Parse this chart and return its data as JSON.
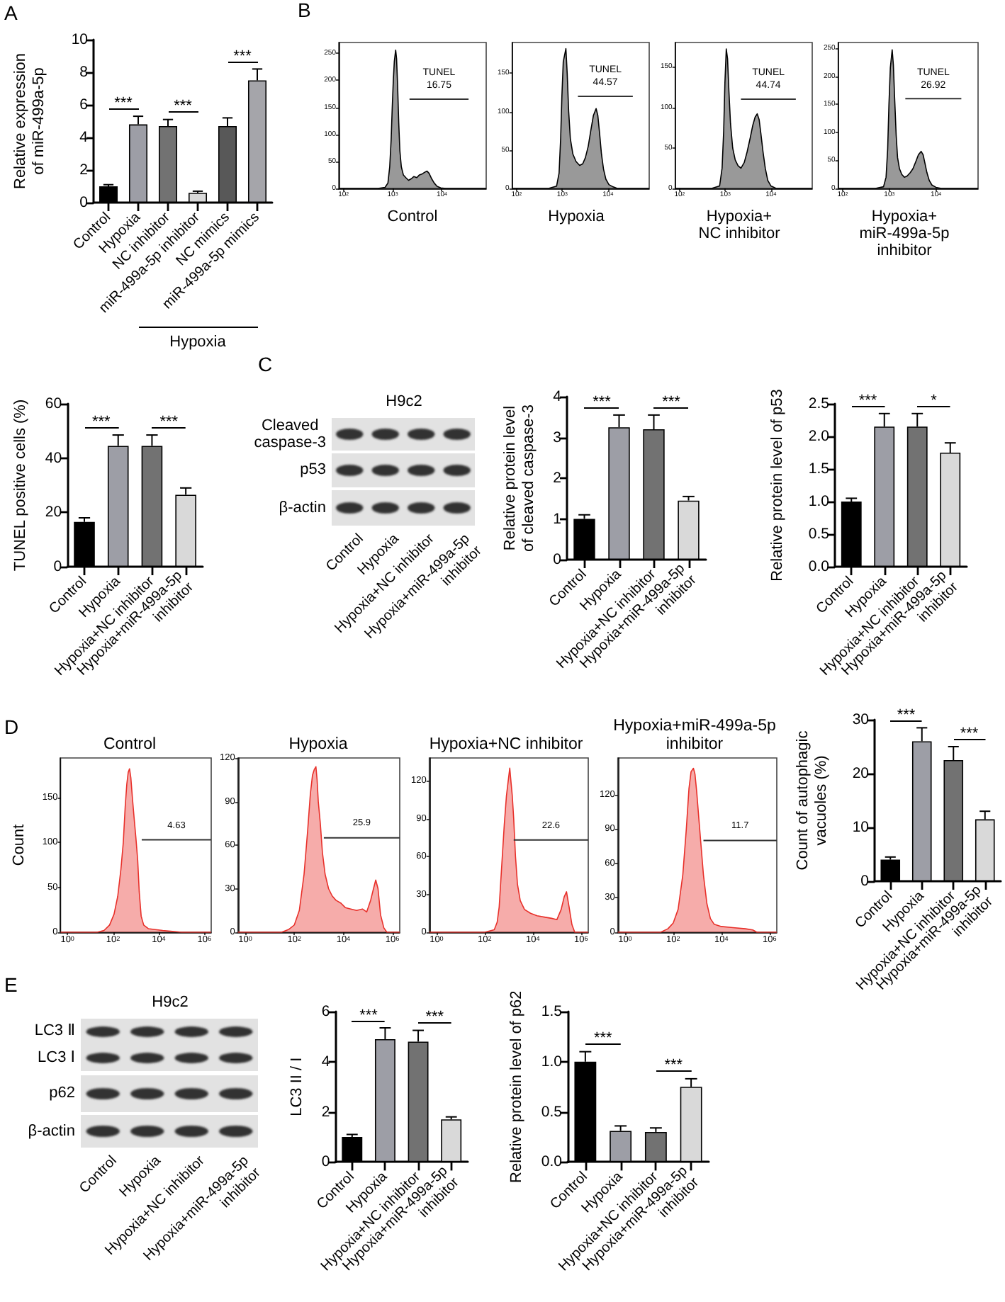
{
  "chart_data": [
    {
      "type": "bar",
      "ylabel": "Relative expression\nof miR-499a-5p",
      "categories": [
        "Control",
        "Hypoxia",
        "NC inhibitor",
        "miR-499a-5p inhibitor",
        "NC mimics",
        "miR-499a-5p mimics"
      ],
      "values": [
        1.0,
        4.8,
        4.7,
        0.6,
        4.7,
        7.5
      ],
      "colors": [
        "#000000",
        "#9d9ea6",
        "#727272",
        "#d9d9d9",
        "#585858",
        "#a5a5aa"
      ],
      "errors": [
        [
          1.0,
          1.1
        ],
        [
          4.8,
          5.3
        ],
        [
          4.7,
          5.1
        ],
        [
          0.6,
          0.7
        ],
        [
          4.7,
          5.2
        ],
        [
          7.5,
          8.2
        ]
      ],
      "ylim": [
        0,
        10
      ],
      "yticks": [
        0,
        2,
        4,
        6,
        8,
        10
      ],
      "annotations": [
        "A",
        "***",
        "***",
        "***",
        "Hypoxia"
      ]
    },
    {
      "type": "area",
      "title": "Control",
      "series": [
        {
          "color": "#000000",
          "x": [
            80,
            500,
            700,
            800,
            870,
            930,
            980,
            1030,
            1080,
            1150,
            1200,
            1260,
            1330,
            1400,
            1500,
            1650,
            1850,
            2100,
            2400,
            2700,
            3100,
            3500,
            4000,
            4500,
            5000,
            5500,
            6200,
            7000,
            8000,
            9500,
            12000,
            80000
          ],
          "values": [
            0,
            0,
            2,
            10,
            40,
            90,
            150,
            200,
            235,
            256,
            240,
            190,
            120,
            70,
            40,
            25,
            20,
            15,
            18,
            22,
            20,
            25,
            27,
            30,
            32,
            28,
            18,
            10,
            4,
            1,
            0,
            0
          ]
        },
        {
          "type": "line",
          "color": "#333333",
          "x": [
            2200,
            35000
          ],
          "values": [
            165,
            165
          ]
        }
      ],
      "log": "x",
      "xlim": [
        80,
        80000
      ],
      "xticks": [
        {
          "value": 100,
          "label": "10$^{2}$"
        },
        {
          "value": 1000,
          "label": "10$^{3}$"
        },
        {
          "value": 10000,
          "label": "10$^{4}$"
        }
      ],
      "ylim": [
        0,
        270
      ],
      "yticks": [
        0,
        50,
        100,
        150,
        200,
        250
      ],
      "annotations": [
        "B",
        "TUNEL",
        "16.75"
      ]
    },
    {
      "type": "area",
      "title": "Hypoxia",
      "series": [
        {
          "color": "#000000",
          "x": [
            80,
            500,
            750,
            850,
            920,
            980,
            1050,
            1200,
            1280,
            1380,
            1500,
            1700,
            2000,
            2400,
            2800,
            3200,
            3700,
            4200,
            4800,
            5500,
            6000,
            6600,
            7200,
            8000,
            9000,
            10500,
            13000,
            16000,
            80000
          ],
          "values": [
            0,
            0,
            3,
            20,
            65,
            120,
            165,
            182,
            150,
            100,
            65,
            45,
            35,
            30,
            32,
            40,
            55,
            75,
            95,
            104,
            95,
            70,
            45,
            25,
            12,
            5,
            2,
            0,
            0
          ]
        },
        {
          "type": "line",
          "color": "#333333",
          "x": [
            2200,
            35000
          ],
          "values": [
            120,
            120
          ]
        }
      ],
      "log": "x",
      "xlim": [
        80,
        80000
      ],
      "xticks": [
        {
          "value": 100,
          "label": "10$^{2}$"
        },
        {
          "value": 1000,
          "label": "10$^{3}$"
        },
        {
          "value": 10000,
          "label": "10$^{4}$"
        }
      ],
      "ylim": [
        0,
        190
      ],
      "yticks": [
        0,
        50,
        100,
        150
      ],
      "annotations": [
        "TUNEL",
        "44.57"
      ]
    },
    {
      "type": "area",
      "title": "Hypoxia+\nNC inhibitor",
      "series": [
        {
          "color": "#000000",
          "x": [
            80,
            500,
            750,
            850,
            920,
            980,
            1050,
            1120,
            1200,
            1300,
            1450,
            1650,
            1900,
            2200,
            2600,
            3000,
            3500,
            4000,
            4500,
            5000,
            5500,
            6000,
            6700,
            7500,
            8500,
            10000,
            13000,
            80000
          ],
          "values": [
            0,
            0,
            3,
            25,
            70,
            130,
            172,
            160,
            120,
            80,
            50,
            35,
            28,
            25,
            32,
            45,
            62,
            78,
            88,
            92,
            85,
            68,
            45,
            25,
            10,
            3,
            0,
            0
          ]
        },
        {
          "type": "line",
          "color": "#333333",
          "x": [
            2200,
            35000
          ],
          "values": [
            110,
            110
          ]
        }
      ],
      "log": "x",
      "xlim": [
        80,
        80000
      ],
      "xticks": [
        {
          "value": 100,
          "label": "10$^{2}$"
        },
        {
          "value": 1000,
          "label": "10$^{3}$"
        },
        {
          "value": 10000,
          "label": "10$^{4}$"
        }
      ],
      "ylim": [
        0,
        180
      ],
      "yticks": [
        0,
        50,
        100,
        150
      ],
      "annotations": [
        "TUNEL",
        "44.74"
      ]
    },
    {
      "type": "area",
      "title": "Hypoxia+\nmiR-499a-5p\ninhibitor",
      "series": [
        {
          "color": "#000000",
          "x": [
            80,
            500,
            750,
            850,
            920,
            980,
            1050,
            1150,
            1220,
            1300,
            1400,
            1500,
            1650,
            1850,
            2100,
            2400,
            2800,
            3200,
            3700,
            4200,
            4800,
            5300,
            5800,
            6400,
            7200,
            8200,
            10000,
            13000,
            80000
          ],
          "values": [
            0,
            0,
            3,
            20,
            70,
            150,
            215,
            247,
            220,
            160,
            95,
            55,
            35,
            25,
            20,
            22,
            28,
            35,
            48,
            60,
            66,
            60,
            45,
            28,
            14,
            6,
            2,
            0,
            0
          ]
        },
        {
          "type": "line",
          "color": "#333333",
          "x": [
            2200,
            35000
          ],
          "values": [
            160,
            160
          ]
        }
      ],
      "log": "x",
      "xlim": [
        80,
        80000
      ],
      "xticks": [
        {
          "value": 100,
          "label": "10$^{2}$"
        },
        {
          "value": 1000,
          "label": "10$^{3}$"
        },
        {
          "value": 10000,
          "label": "10$^{4}$"
        }
      ],
      "ylim": [
        0,
        260
      ],
      "yticks": [
        0,
        50,
        100,
        150,
        200,
        250
      ],
      "annotations": [
        "TUNEL",
        "26.92"
      ]
    },
    {
      "type": "bar",
      "ylabel": "TUNEL positive cells (%)",
      "categories": [
        "Control",
        "Hypoxia",
        "Hypoxia+NC inhibitor",
        "Hypoxia+miR-499a-5p\ninhibitor"
      ],
      "values": [
        16.5,
        44.5,
        44.5,
        26.5
      ],
      "colors": [
        "#000000",
        "#9d9ea6",
        "#727272",
        "#d9d9d9"
      ],
      "errors": [
        [
          16.5,
          18
        ],
        [
          44.5,
          48.5
        ],
        [
          44.5,
          48.5
        ],
        [
          26.5,
          29
        ]
      ],
      "ylim": [
        0,
        60
      ],
      "yticks": [
        0,
        20,
        40,
        60
      ],
      "annotations": [
        "***",
        "***"
      ]
    },
    {
      "type": "other",
      "title": "H9c2",
      "categories": [
        "Control",
        "Hypoxia",
        "Hypoxia+NC inhibitor",
        "Hypoxia+miR-499a-5p\ninhibitor"
      ],
      "y_categories": [
        "Cleaved\ncaspase-3",
        "p53",
        "β-actin"
      ],
      "annotations": [
        "C"
      ]
    },
    {
      "type": "bar",
      "ylabel": "Relative protein level\nof cleaved caspase-3",
      "categories": [
        "Control",
        "Hypoxia",
        "Hypoxia+NC inhibitor",
        "Hypoxia+miR-499a-5p\ninhibitor"
      ],
      "values": [
        1.0,
        3.25,
        3.2,
        1.45
      ],
      "colors": [
        "#000000",
        "#9d9ea6",
        "#727272",
        "#d9d9d9"
      ],
      "errors": [
        [
          1.0,
          1.1
        ],
        [
          3.25,
          3.55
        ],
        [
          3.2,
          3.55
        ],
        [
          1.45,
          1.55
        ]
      ],
      "ylim": [
        0,
        4
      ],
      "yticks": [
        0,
        1,
        2,
        3,
        4
      ],
      "annotations": [
        "***",
        "***"
      ]
    },
    {
      "type": "bar",
      "ylabel": "Relative protein level of p53",
      "categories": [
        "Control",
        "Hypoxia",
        "Hypoxia+NC inhibitor",
        "Hypoxia+miR-499a-5p\ninhibitor"
      ],
      "values": [
        1.0,
        2.15,
        2.15,
        1.75
      ],
      "colors": [
        "#000000",
        "#9d9ea6",
        "#727272",
        "#d9d9d9"
      ],
      "errors": [
        [
          1.0,
          1.05
        ],
        [
          2.15,
          2.35
        ],
        [
          2.15,
          2.35
        ],
        [
          1.75,
          1.9
        ]
      ],
      "ylim": [
        0,
        2.5
      ],
      "yticks": [
        {
          "value": 0,
          "label": "0.0"
        },
        0.5,
        {
          "value": 1,
          "label": "1.0"
        },
        1.5,
        {
          "value": 2,
          "label": "2.0"
        },
        2.5
      ],
      "annotations": [
        "***",
        "*"
      ]
    },
    {
      "type": "area",
      "title": "Control",
      "ylabel": "Count",
      "series": [
        {
          "color": "#e8302a",
          "x": [
            0.5,
            20,
            40,
            70,
            110,
            160,
            220,
            280,
            340,
            400,
            460,
            525,
            600,
            700,
            850,
            1000,
            1200,
            1400,
            1700,
            2200,
            3500,
            7000,
            15000,
            40000,
            100000,
            2000000
          ],
          "values": [
            0,
            0,
            2,
            8,
            20,
            40,
            70,
            100,
            140,
            165,
            178,
            182,
            172,
            150,
            125,
            105,
            80,
            45,
            18,
            8,
            4,
            3,
            2,
            1,
            0,
            0
          ]
        },
        {
          "type": "line",
          "color": "#333333",
          "x": [
            1800,
            2000000
          ],
          "values": [
            103,
            103
          ]
        }
      ],
      "log": "x",
      "xlim": [
        0.5,
        2000000
      ],
      "xticks": [
        {
          "value": 1,
          "label": "10$^{0}$"
        },
        {
          "value": 100,
          "label": "10$^{2}$"
        },
        {
          "value": 10000,
          "label": "10$^{4}$"
        },
        {
          "value": 1000000,
          "label": "10$^{6}$"
        }
      ],
      "ylim": [
        0,
        194
      ],
      "yticks": [
        0,
        50,
        100,
        150
      ],
      "annotations": [
        "D",
        "4.63"
      ]
    },
    {
      "type": "area",
      "title": "Hypoxia",
      "series": [
        {
          "color": "#e8302a",
          "x": [
            0.5,
            30,
            60,
            100,
            160,
            250,
            350,
            450,
            550,
            650,
            760,
            850,
            950,
            1150,
            1400,
            1800,
            2500,
            3500,
            5000,
            8000,
            12000,
            20000,
            35000,
            60000,
            90000,
            130000,
            170000,
            210000,
            260000,
            330000,
            450000,
            600000,
            2000000
          ],
          "values": [
            0,
            0,
            2,
            5,
            15,
            40,
            70,
            95,
            108,
            112,
            114,
            105,
            90,
            75,
            55,
            40,
            30,
            25,
            22,
            20,
            17,
            16,
            15,
            16,
            14,
            22,
            30,
            36,
            30,
            12,
            3,
            0,
            0
          ]
        },
        {
          "type": "line",
          "color": "#333333",
          "x": [
            1600,
            2000000
          ],
          "values": [
            65,
            65
          ]
        }
      ],
      "log": "x",
      "xlim": [
        0.5,
        2000000
      ],
      "xticks": [
        {
          "value": 1,
          "label": "10$^{0}$"
        },
        {
          "value": 100,
          "label": "10$^{2}$"
        },
        {
          "value": 10000,
          "label": "10$^{4}$"
        },
        {
          "value": 1000000,
          "label": "10$^{6}$"
        }
      ],
      "ylim": [
        0,
        120
      ],
      "yticks": [
        0,
        30,
        60,
        90,
        120
      ],
      "annotations": [
        "25.9"
      ]
    },
    {
      "type": "area",
      "title": "Hypoxia+NC inhibitor",
      "series": [
        {
          "color": "#e8302a",
          "x": [
            0.5,
            100,
            250,
            330,
            400,
            500,
            650,
            800,
            950,
            1100,
            1250,
            1400,
            1600,
            1900,
            2300,
            3000,
            4500,
            8000,
            15000,
            30000,
            60000,
            100000,
            150000,
            200000,
            250000,
            320000,
            420000,
            550000,
            2000000
          ],
          "values": [
            0,
            0,
            2,
            8,
            20,
            50,
            85,
            108,
            120,
            130,
            118,
            108,
            90,
            60,
            38,
            25,
            18,
            15,
            13,
            12,
            11,
            10,
            18,
            28,
            32,
            20,
            6,
            0,
            0
          ]
        },
        {
          "type": "line",
          "color": "#333333",
          "x": [
            1600,
            2000000
          ],
          "values": [
            73,
            73
          ]
        }
      ],
      "log": "x",
      "xlim": [
        0.5,
        2000000
      ],
      "xticks": [
        {
          "value": 1,
          "label": "10$^{0}$"
        },
        {
          "value": 100,
          "label": "10$^{2}$"
        },
        {
          "value": 10000,
          "label": "10$^{4}$"
        },
        {
          "value": 1000000,
          "label": "10$^{6}$"
        }
      ],
      "ylim": [
        0,
        138
      ],
      "yticks": [
        0,
        30,
        60,
        90,
        120
      ],
      "annotations": [
        "22.6"
      ]
    },
    {
      "type": "area",
      "title": "Hypoxia+miR-499a-5p\ninhibitor",
      "series": [
        {
          "color": "#e8302a",
          "x": [
            0.5,
            30,
            60,
            100,
            160,
            250,
            350,
            450,
            550,
            690,
            800,
            950,
            1150,
            1400,
            1800,
            2500,
            3500,
            5000,
            10000,
            30000,
            100000,
            200000,
            300000,
            2000000
          ],
          "values": [
            0,
            0,
            3,
            8,
            20,
            50,
            90,
            125,
            140,
            143,
            138,
            122,
            100,
            78,
            50,
            25,
            12,
            7,
            5,
            4,
            3,
            2,
            0,
            0
          ]
        },
        {
          "type": "line",
          "color": "#333333",
          "x": [
            1800,
            2000000
          ],
          "values": [
            80,
            80
          ]
        }
      ],
      "log": "x",
      "xlim": [
        0.5,
        2000000
      ],
      "xticks": [
        {
          "value": 1,
          "label": "10$^{0}$"
        },
        {
          "value": 100,
          "label": "10$^{2}$"
        },
        {
          "value": 10000,
          "label": "10$^{4}$"
        },
        {
          "value": 1000000,
          "label": "10$^{6}$"
        }
      ],
      "ylim": [
        0,
        152
      ],
      "yticks": [
        0,
        30,
        60,
        90,
        120
      ],
      "annotations": [
        "11.7"
      ]
    },
    {
      "type": "bar",
      "ylabel": "Count of autophagic\nvacuoles (%)",
      "categories": [
        "Control",
        "Hypoxia",
        "Hypoxia+NC inhibitor",
        "Hypoxia+miR-499a-5p\ninhibitor"
      ],
      "values": [
        4.0,
        26.0,
        22.5,
        11.5
      ],
      "colors": [
        "#000000",
        "#9d9ea6",
        "#727272",
        "#d9d9d9"
      ],
      "errors": [
        [
          4.0,
          4.5
        ],
        [
          26.0,
          28.5
        ],
        [
          22.5,
          25.0
        ],
        [
          11.5,
          13.0
        ]
      ],
      "ylim": [
        0,
        30
      ],
      "yticks": [
        0,
        10,
        20,
        30
      ],
      "annotations": [
        "***",
        "***"
      ]
    },
    {
      "type": "other",
      "title": "H9c2",
      "categories": [
        "Control",
        "Hypoxia",
        "Hypoxia+NC inhibitor",
        "Hypoxia+miR-499a-5p\ninhibitor"
      ],
      "y_categories": [
        "LC3 Ⅱ",
        "LC3 Ⅰ",
        "p62",
        "β-actin"
      ],
      "annotations": [
        "E"
      ]
    },
    {
      "type": "bar",
      "ylabel": "LC3 II / I",
      "categories": [
        "Control",
        "Hypoxia",
        "Hypoxia+NC inhibitor",
        "Hypoxia+miR-499a-5p\ninhibitor"
      ],
      "values": [
        1.0,
        4.9,
        4.8,
        1.7
      ],
      "colors": [
        "#000000",
        "#9d9ea6",
        "#727272",
        "#d9d9d9"
      ],
      "errors": [
        [
          1.0,
          1.1
        ],
        [
          4.9,
          5.35
        ],
        [
          4.8,
          5.25
        ],
        [
          1.7,
          1.8
        ]
      ],
      "ylim": [
        0,
        6
      ],
      "yticks": [
        0,
        2,
        4,
        6
      ],
      "annotations": [
        "***",
        "***"
      ]
    },
    {
      "type": "bar",
      "ylabel": "Relative protein level of p62",
      "categories": [
        "Control",
        "Hypoxia",
        "Hypoxia+NC inhibitor",
        "Hypoxia+miR-499a-5p\ninhibitor"
      ],
      "values": [
        1.0,
        0.31,
        0.3,
        0.75
      ],
      "colors": [
        "#000000",
        "#9d9ea6",
        "#727272",
        "#d9d9d9"
      ],
      "errors": [
        [
          1.0,
          1.1
        ],
        [
          0.31,
          0.36
        ],
        [
          0.3,
          0.34
        ],
        [
          0.75,
          0.83
        ]
      ],
      "ylim": [
        0,
        1.5
      ],
      "yticks": [
        {
          "value": 0,
          "label": "0.0"
        },
        0.5,
        {
          "value": 1,
          "label": "1.0"
        },
        1.5
      ],
      "annotations": [
        "***",
        "***"
      ]
    }
  ]
}
